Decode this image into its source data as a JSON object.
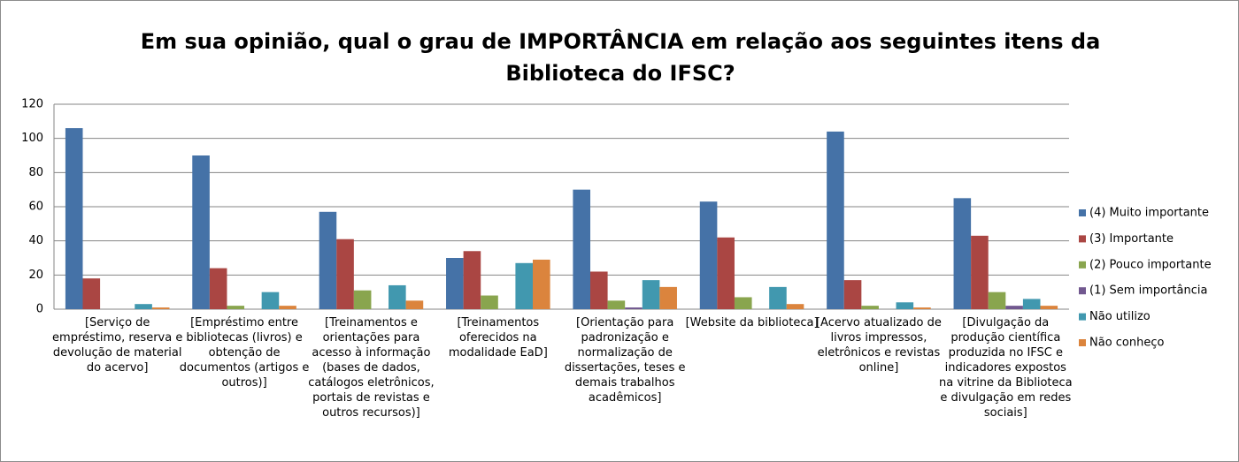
{
  "chart_data": {
    "type": "bar",
    "title": "Em sua opinião, qual o grau de IMPORTÂNCIA em relação aos seguintes itens da Biblioteca do IFSC?",
    "categories": [
      "[Serviço de empréstimo, reserva e devolução de material do acervo]",
      "[Empréstimo entre bibliotecas (livros) e obtenção de documentos (artigos e outros)]",
      "[Treinamentos e orientações para acesso à informação (bases de dados, catálogos eletrônicos, portais de revistas e outros recursos)]",
      "[Treinamentos oferecidos na modalidade EaD]",
      "[Orientação para padronização e normalização de dissertações, teses e demais trabalhos acadêmicos]",
      "[Website da biblioteca]",
      "[Acervo atualizado de livros impressos, eletrônicos e revistas online]",
      "[Divulgação da produção científica produzida no IFSC e indicadores expostos na vitrine da Biblioteca e divulgação em redes sociais]"
    ],
    "series": [
      {
        "name": "(4) Muito importante",
        "color": "#4572a7",
        "values": [
          106,
          90,
          57,
          30,
          70,
          63,
          104,
          65
        ]
      },
      {
        "name": "(3) Importante",
        "color": "#aa4643",
        "values": [
          18,
          24,
          41,
          34,
          22,
          42,
          17,
          43
        ]
      },
      {
        "name": "(2) Pouco importante",
        "color": "#89a54e",
        "values": [
          0,
          2,
          11,
          8,
          5,
          7,
          2,
          10
        ]
      },
      {
        "name": "(1) Sem importância",
        "color": "#71588f",
        "values": [
          0,
          0,
          0,
          0,
          1,
          0,
          0,
          2
        ]
      },
      {
        "name": "Não utilizo",
        "color": "#4198af",
        "values": [
          3,
          10,
          14,
          27,
          17,
          13,
          4,
          6
        ]
      },
      {
        "name": "Não conheço",
        "color": "#db843d",
        "values": [
          1,
          2,
          5,
          29,
          13,
          3,
          1,
          2
        ]
      }
    ],
    "ylim": [
      0,
      120
    ],
    "yticks": [
      0,
      20,
      40,
      60,
      80,
      100,
      120
    ],
    "grid": true,
    "legend": "right"
  }
}
